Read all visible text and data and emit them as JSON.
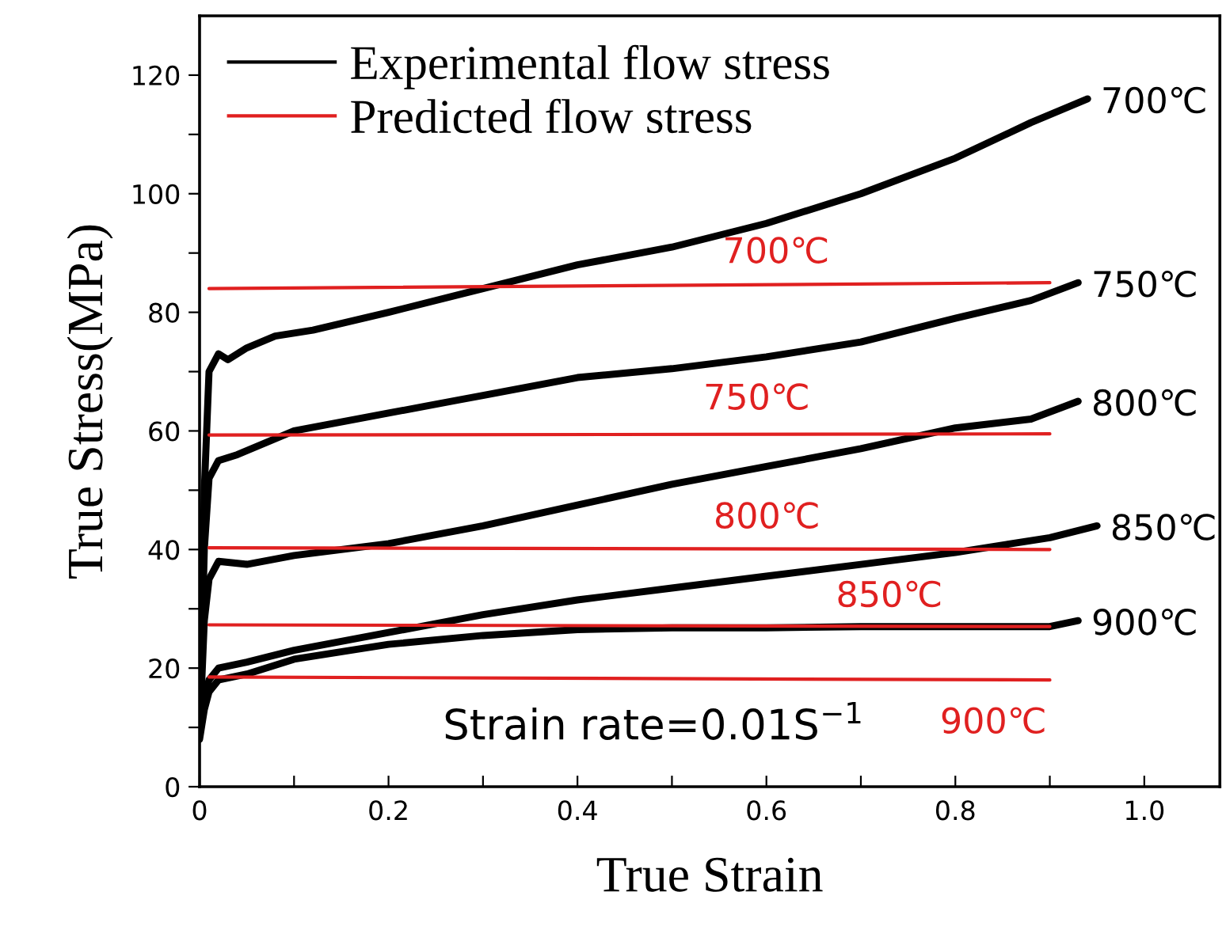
{
  "chart_data": {
    "type": "line",
    "xlabel": "True Strain",
    "ylabel": "True Stress(MPa)",
    "xlim": [
      0,
      1.08
    ],
    "ylim": [
      0,
      130
    ],
    "xticks": [
      0,
      {
        "value": 0.1,
        "label": null
      },
      {
        "value": 0.2,
        "label": "0.2"
      },
      {
        "value": 0.3,
        "label": null
      },
      {
        "value": 0.4,
        "label": "0.4"
      },
      {
        "value": 0.5,
        "label": null
      },
      {
        "value": 0.6,
        "label": "0.6"
      },
      {
        "value": 0.7,
        "label": null
      },
      {
        "value": 0.8,
        "label": "0.8"
      },
      {
        "value": 0.9,
        "label": null
      },
      {
        "value": 1.0,
        "label": "1.0"
      }
    ],
    "yticks": [
      0,
      {
        "value": 10,
        "label": null
      },
      20,
      {
        "value": 30,
        "label": null
      },
      40,
      {
        "value": 50,
        "label": null
      },
      60,
      {
        "value": 70,
        "label": null
      },
      80,
      {
        "value": 90,
        "label": null
      },
      100,
      {
        "value": 110,
        "label": null
      },
      120
    ],
    "grid": false,
    "legend": "top left",
    "line_style": "solid",
    "marker": "none",
    "series": [
      {
        "name": "Experimental flow stress",
        "color": "#000000",
        "x": [
          0,
          0.005,
          0.01,
          0.02,
          0.03,
          0.05,
          0.08,
          0.12,
          0.2,
          0.3,
          0.4,
          0.5,
          0.6,
          0.7,
          0.8,
          0.88,
          0.94
        ],
        "values": [
          9,
          50,
          70,
          73,
          72,
          74,
          76,
          77,
          80,
          84,
          88,
          91,
          95,
          100,
          106,
          112,
          116
        ]
      },
      {
        "color": "#000000",
        "x": [
          0,
          0.005,
          0.01,
          0.02,
          0.04,
          0.07,
          0.1,
          0.2,
          0.3,
          0.4,
          0.5,
          0.6,
          0.7,
          0.8,
          0.88,
          0.93
        ],
        "values": [
          9,
          40,
          52,
          55,
          56,
          58,
          60,
          63,
          66,
          69,
          70.5,
          72.5,
          75,
          79,
          82,
          85
        ]
      },
      {
        "color": "#000000",
        "x": [
          0,
          0.005,
          0.01,
          0.02,
          0.05,
          0.1,
          0.2,
          0.3,
          0.4,
          0.5,
          0.6,
          0.7,
          0.8,
          0.88,
          0.93
        ],
        "values": [
          9,
          28,
          35,
          38,
          37.5,
          39,
          41,
          44,
          47.5,
          51,
          54,
          57,
          60.5,
          62,
          65
        ]
      },
      {
        "color": "#000000",
        "x": [
          0,
          0.005,
          0.01,
          0.02,
          0.05,
          0.1,
          0.2,
          0.3,
          0.4,
          0.5,
          0.6,
          0.7,
          0.8,
          0.9,
          0.95
        ],
        "values": [
          9,
          15,
          18,
          20,
          21,
          23,
          26,
          29,
          31.5,
          33.5,
          35.5,
          37.5,
          39.5,
          42,
          44
        ]
      },
      {
        "color": "#000000",
        "x": [
          0,
          0.005,
          0.01,
          0.02,
          0.05,
          0.1,
          0.2,
          0.3,
          0.4,
          0.5,
          0.6,
          0.7,
          0.8,
          0.9,
          0.93
        ],
        "values": [
          8,
          13,
          16,
          18,
          19,
          21.5,
          24,
          25.5,
          26.5,
          26.8,
          26.8,
          27,
          27,
          27,
          28
        ]
      },
      {
        "name": "Predicted flow stress",
        "color": "#e02020",
        "x": [
          0.01,
          0.9
        ],
        "values": [
          84,
          85
        ]
      },
      {
        "color": "#e02020",
        "x": [
          0.01,
          0.9
        ],
        "values": [
          59.3,
          59.5
        ]
      },
      {
        "color": "#e02020",
        "x": [
          0.01,
          0.9
        ],
        "values": [
          40.3,
          40
        ]
      },
      {
        "color": "#e02020",
        "x": [
          0.01,
          0.9
        ],
        "values": [
          27.3,
          27
        ]
      },
      {
        "color": "#e02020",
        "x": [
          0.01,
          0.9
        ],
        "values": [
          18.5,
          18
        ]
      }
    ],
    "annotations": [
      "700℃",
      "750℃",
      "800℃",
      "850℃",
      "900℃",
      "700℃",
      "750℃",
      "800℃",
      "850℃",
      "900℃",
      "Strain rate=0.01S$^{−1}$"
    ]
  }
}
